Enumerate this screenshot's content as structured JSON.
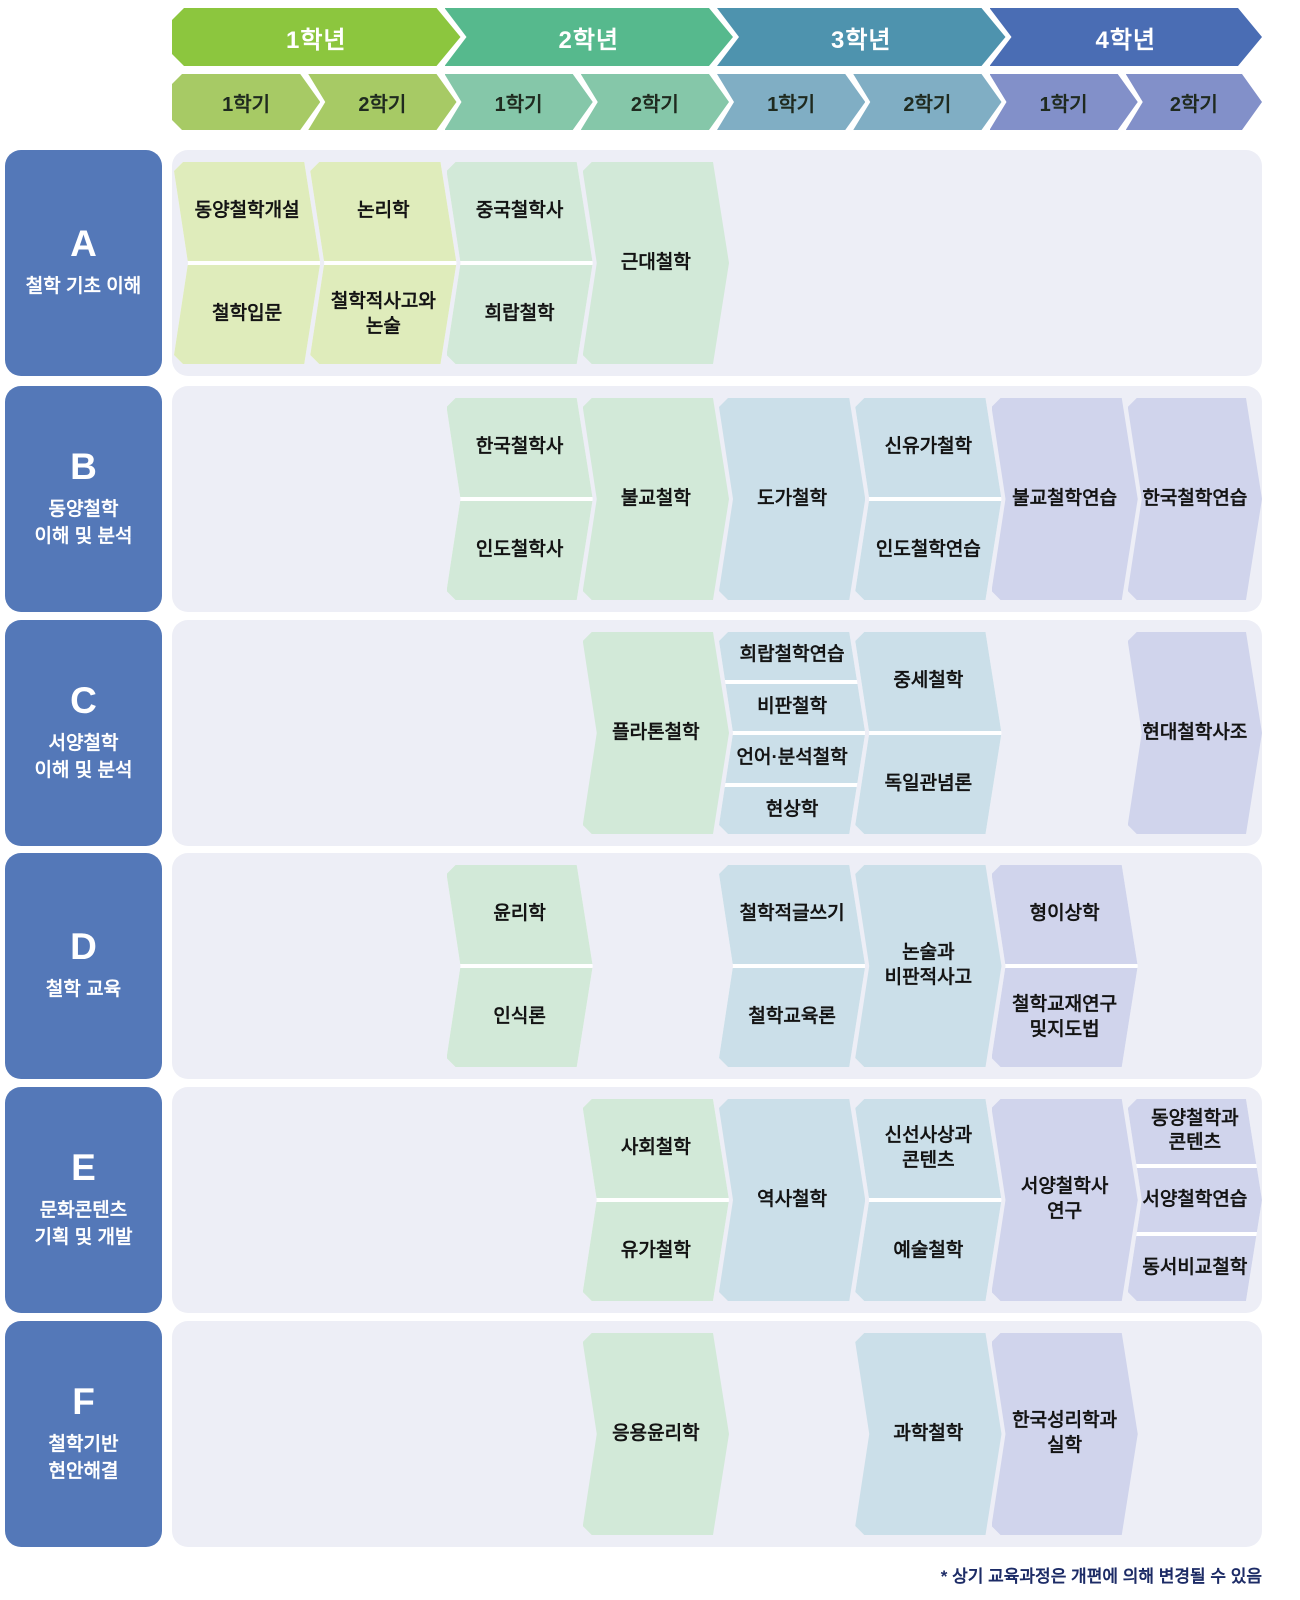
{
  "header": {
    "years": [
      {
        "label": "1학년",
        "color": "#8CC63E",
        "semester_color": "#A7CA65",
        "course_color": "#DFECBB",
        "semesters": [
          {
            "label": "1학기"
          },
          {
            "label": "2학기"
          }
        ]
      },
      {
        "label": "2학년",
        "color": "#56B98D",
        "semester_color": "#85C7A9",
        "course_color": "#D2E9D8",
        "semesters": [
          {
            "label": "1학기"
          },
          {
            "label": "2학기"
          }
        ]
      },
      {
        "label": "3학년",
        "color": "#4E93AE",
        "semester_color": "#80AEC4",
        "course_color": "#CBDFE9",
        "semesters": [
          {
            "label": "1학기"
          },
          {
            "label": "2학기"
          }
        ]
      },
      {
        "label": "4학년",
        "color": "#4A6DB4",
        "semester_color": "#8290C9",
        "course_color": "#D0D4EC",
        "semesters": [
          {
            "label": "1학기"
          },
          {
            "label": "2학기"
          }
        ]
      }
    ]
  },
  "tracks": [
    {
      "letter": "A",
      "title": "철학 기초 이해",
      "groups": [
        {
          "col": 0,
          "courses": [
            "동양철학개설",
            "철학입문"
          ]
        },
        {
          "col": 1,
          "courses": [
            "논리학",
            "철학적사고와\n논술"
          ]
        },
        {
          "col": 2,
          "courses": [
            "중국철학사",
            "희랍철학"
          ]
        },
        {
          "col": 3,
          "courses": [
            "근대철학"
          ]
        }
      ]
    },
    {
      "letter": "B",
      "title": "동양철학\n이해 및 분석",
      "groups": [
        {
          "col": 2,
          "courses": [
            "한국철학사",
            "인도철학사"
          ]
        },
        {
          "col": 3,
          "courses": [
            "불교철학"
          ]
        },
        {
          "col": 4,
          "courses": [
            "도가철학"
          ]
        },
        {
          "col": 5,
          "courses": [
            "신유가철학",
            "인도철학연습"
          ]
        },
        {
          "col": 6,
          "courses": [
            "불교철학연습"
          ]
        },
        {
          "col": 7,
          "courses": [
            "한국철학연습"
          ]
        }
      ]
    },
    {
      "letter": "C",
      "title": "서양철학\n이해 및 분석",
      "groups": [
        {
          "col": 3,
          "courses": [
            "플라톤철학"
          ]
        },
        {
          "col": 4,
          "courses": [
            "희랍철학연습",
            "비판철학",
            "언어·분석철학",
            "현상학"
          ]
        },
        {
          "col": 5,
          "courses": [
            "중세철학",
            "독일관념론"
          ]
        },
        {
          "col": 7,
          "courses": [
            "현대철학사조"
          ]
        }
      ]
    },
    {
      "letter": "D",
      "title": "철학 교육",
      "groups": [
        {
          "col": 2,
          "courses": [
            "윤리학",
            "인식론"
          ]
        },
        {
          "col": 4,
          "courses": [
            "철학적글쓰기",
            "철학교육론"
          ]
        },
        {
          "col": 5,
          "courses": [
            "논술과\n비판적사고"
          ]
        },
        {
          "col": 6,
          "courses": [
            "형이상학",
            "철학교재연구\n및지도법"
          ]
        }
      ]
    },
    {
      "letter": "E",
      "title": "문화콘텐츠\n기획 및 개발",
      "groups": [
        {
          "col": 3,
          "courses": [
            "사회철학",
            "유가철학"
          ]
        },
        {
          "col": 4,
          "courses": [
            "역사철학"
          ]
        },
        {
          "col": 5,
          "courses": [
            "신선사상과\n콘텐츠",
            "예술철학"
          ]
        },
        {
          "col": 6,
          "courses": [
            "서양철학사\n연구"
          ]
        },
        {
          "col": 7,
          "courses": [
            "동양철학과\n콘텐츠",
            "서양철학연습",
            "동서비교철학"
          ]
        }
      ]
    },
    {
      "letter": "F",
      "title": "철학기반\n현안해결",
      "groups": [
        {
          "col": 3,
          "courses": [
            "응용윤리학"
          ]
        },
        {
          "col": 5,
          "courses": [
            "과학철학"
          ]
        },
        {
          "col": 6,
          "courses": [
            "한국성리학과\n실학"
          ]
        }
      ]
    }
  ],
  "footnote": "* 상기 교육과정은 개편에 의해 변경될 수 있음",
  "colors": {
    "track_label_bg": "#5478B8",
    "row_bg": "#EDEEF6",
    "footnote_text": "#1C2B66",
    "cell_text": "#141414"
  }
}
